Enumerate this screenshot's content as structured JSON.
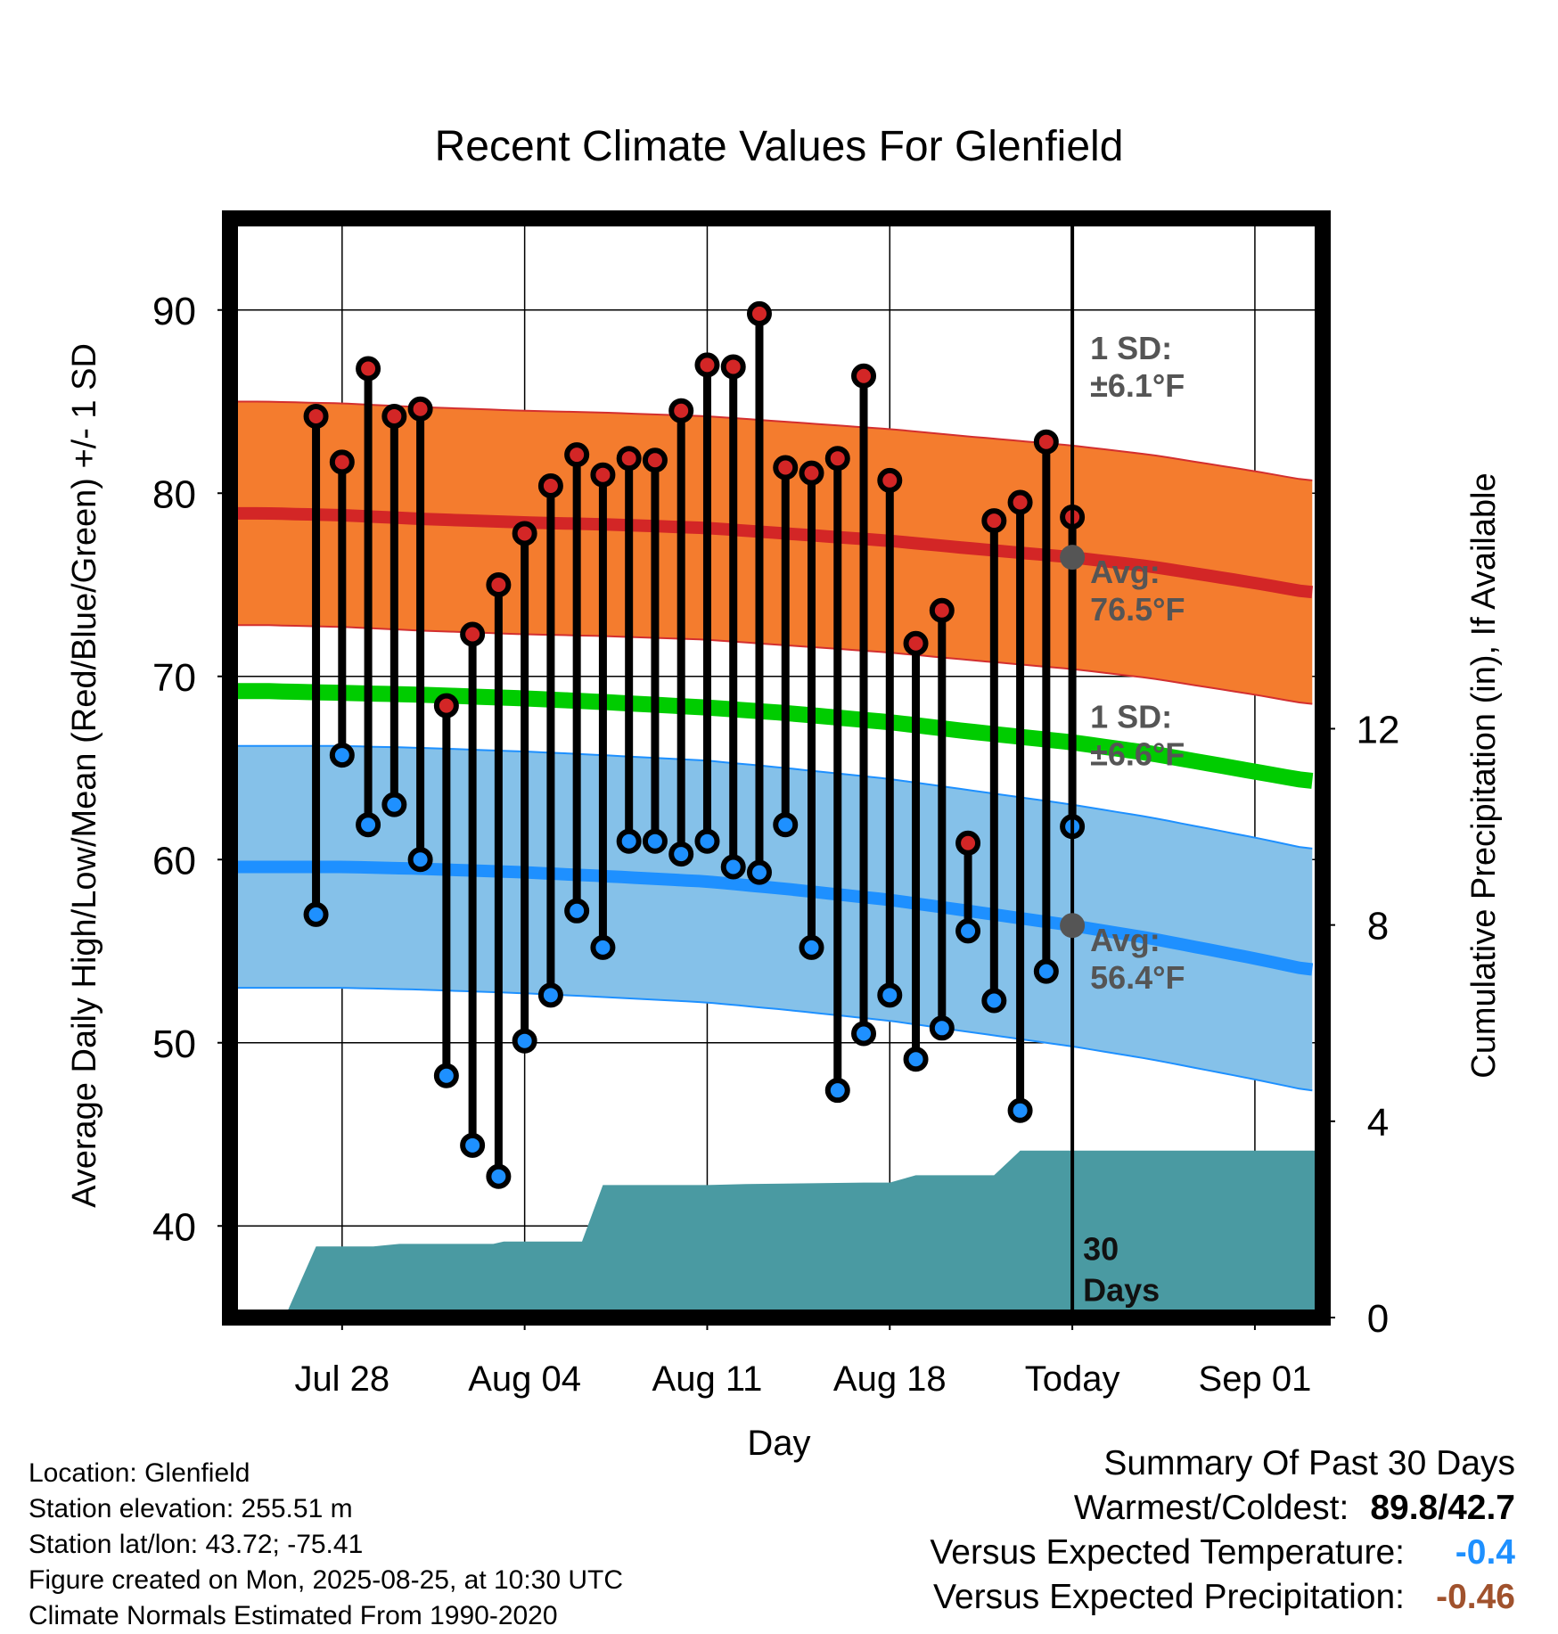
{
  "chart_data": {
    "type": "line",
    "title": "Recent Climate Values For Glenfield",
    "xlabel": "Day",
    "ylabel": "Average Daily High/Low/Mean (Red/Blue/Green) +/- 1 SD",
    "y2label": "Cumulative Precipitation (in), If Available",
    "ylim": [
      35,
      95
    ],
    "y2lim": [
      0,
      22.4
    ],
    "yticks": [
      40,
      50,
      60,
      70,
      80,
      90
    ],
    "y2ticks": [
      0,
      4,
      8,
      12
    ],
    "xlim": [
      -4.3,
      37.6
    ],
    "xticks": [
      {
        "day": 0,
        "label": "Jul 28"
      },
      {
        "day": 7,
        "label": "Aug 04"
      },
      {
        "day": 14,
        "label": "Aug 11"
      },
      {
        "day": 21,
        "label": "Aug 18"
      },
      {
        "day": 28,
        "label": "Today"
      },
      {
        "day": 35,
        "label": "Sep 01"
      }
    ],
    "today_day": 28,
    "days_label": "30\nDays",
    "daily_highs": [
      84.2,
      81.7,
      86.8,
      84.2,
      84.6,
      68.4,
      72.3,
      75.0,
      77.8,
      80.4,
      82.1,
      81.0,
      81.9,
      81.8,
      84.5,
      87.0,
      86.9,
      89.8,
      81.4,
      81.1,
      81.9,
      86.4,
      80.7,
      71.8,
      73.6,
      60.9,
      78.5,
      79.5,
      82.8,
      78.7
    ],
    "daily_lows": [
      57.0,
      65.7,
      61.9,
      63.0,
      60.0,
      48.2,
      44.4,
      42.7,
      50.1,
      52.6,
      57.2,
      55.2,
      61.0,
      61.0,
      60.3,
      61.0,
      59.6,
      59.3,
      61.9,
      55.2,
      47.4,
      50.5,
      52.6,
      49.1,
      50.8,
      56.1,
      52.3,
      46.3,
      53.9,
      61.8
    ],
    "normal_days": [
      -3,
      0,
      3,
      7,
      10,
      14,
      17,
      21,
      24,
      28,
      31,
      35,
      37
    ],
    "normal_high": [
      78.9,
      78.8,
      78.6,
      78.4,
      78.3,
      78.1,
      77.8,
      77.4,
      77.0,
      76.5,
      76.0,
      75.1,
      74.6
    ],
    "normal_high_sd": 6.1,
    "normal_low": [
      59.6,
      59.6,
      59.5,
      59.3,
      59.1,
      58.8,
      58.4,
      57.8,
      57.2,
      56.4,
      55.7,
      54.6,
      54.0
    ],
    "normal_low_sd": 6.6,
    "normal_mean": [
      69.2,
      69.1,
      69.0,
      68.8,
      68.6,
      68.3,
      68.0,
      67.5,
      67.0,
      66.4,
      65.8,
      64.8,
      64.3
    ],
    "precip_cumulative": [
      [
        -2.2,
        0.0
      ],
      [
        -1,
        1.45
      ],
      [
        1.2,
        1.45
      ],
      [
        2.2,
        1.5
      ],
      [
        5.8,
        1.5
      ],
      [
        6.2,
        1.55
      ],
      [
        9.2,
        1.55
      ],
      [
        10.0,
        2.7
      ],
      [
        14.0,
        2.7
      ],
      [
        15.5,
        2.72
      ],
      [
        20.0,
        2.75
      ],
      [
        21.0,
        2.75
      ],
      [
        22.0,
        2.9
      ],
      [
        25.0,
        2.9
      ],
      [
        26.0,
        3.4
      ],
      [
        37.6,
        3.4
      ]
    ],
    "annotations": {
      "high_sd": "1 SD:\n±6.1°F",
      "high_avg": "Avg:\n76.5°F",
      "low_sd": "1 SD:\n±6.6°F",
      "low_avg": "Avg:\n56.4°F",
      "high_today": 76.5,
      "low_today": 56.4
    },
    "colors": {
      "high_band": "#f47c2e",
      "high_band_edge": "#d32f2f",
      "high_line": "#d32626",
      "low_band": "#85c1e9",
      "low_band_edge": "#1e90ff",
      "low_line": "#1e90ff",
      "mean_line": "#00cc00",
      "precip": "#4a9aa2",
      "high_marker": "#d32626",
      "low_marker": "#1e90ff",
      "annotation": "#555555",
      "today_marker": "#555555"
    }
  },
  "footer": {
    "location": "Location: Glenfield",
    "elevation": "Station elevation: 255.51 m",
    "latlon": "Station lat/lon: 43.72; -75.41",
    "created": "Figure created on Mon, 2025-08-25, at 10:30 UTC",
    "normals": "Climate Normals Estimated From 1990-2020"
  },
  "summary": {
    "heading": "Summary Of Past 30 Days",
    "warm_cold_label": "Warmest/Coldest:",
    "warm_cold_value": "89.8/42.7",
    "temp_label": "Versus Expected Temperature:",
    "temp_value": "-0.4",
    "temp_color": "#1e90ff",
    "precip_label": "Versus Expected Precipitation:",
    "precip_value": "-0.46",
    "precip_color": "#a0522d"
  }
}
